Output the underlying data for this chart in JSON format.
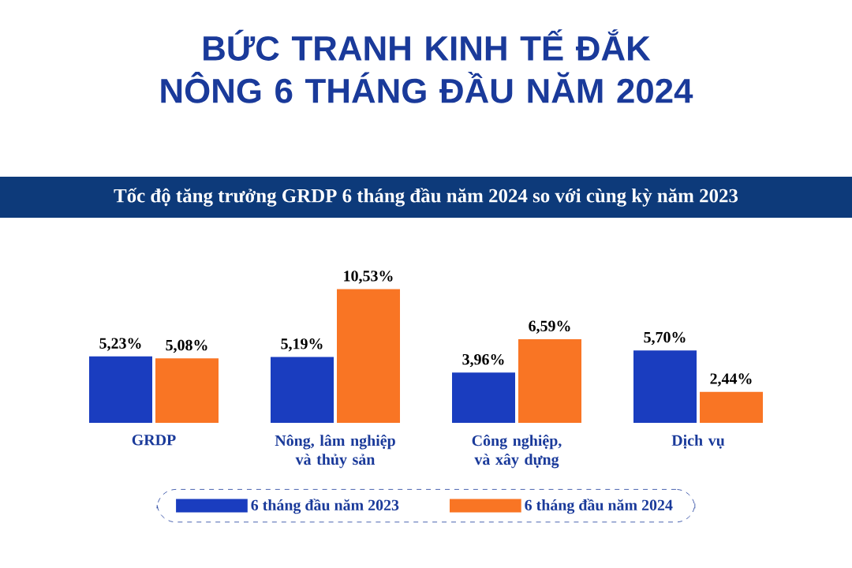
{
  "chart_data": {
    "type": "bar",
    "title": "BỨC TRANH KINH TẾ ĐẮK NÔNG 6 THÁNG ĐẦU NĂM 2024",
    "subtitle": "Tốc độ tăng trưởng GRDP 6 tháng đầu năm 2024  so với cùng kỳ năm 2023",
    "categories": [
      "GRDP",
      "Nông, lâm nghiệp và thủy sản",
      "Công nghiệp, và xây dựng",
      "Dịch vụ"
    ],
    "series": [
      {
        "name": "6 tháng đầu năm 2023",
        "color": "#1a3dbf",
        "values": [
          5.23,
          5.19,
          3.96,
          5.7
        ],
        "value_labels": [
          "5,23%",
          "5,19%",
          "3,96%",
          "5,70%"
        ]
      },
      {
        "name": "6 tháng đầu năm 2024",
        "color": "#f97524",
        "values": [
          5.08,
          10.53,
          6.59,
          2.44
        ],
        "value_labels": [
          "5,08%",
          "10,53%",
          "6,59%",
          "2,44%"
        ]
      }
    ],
    "legend": "bottom"
  }
}
